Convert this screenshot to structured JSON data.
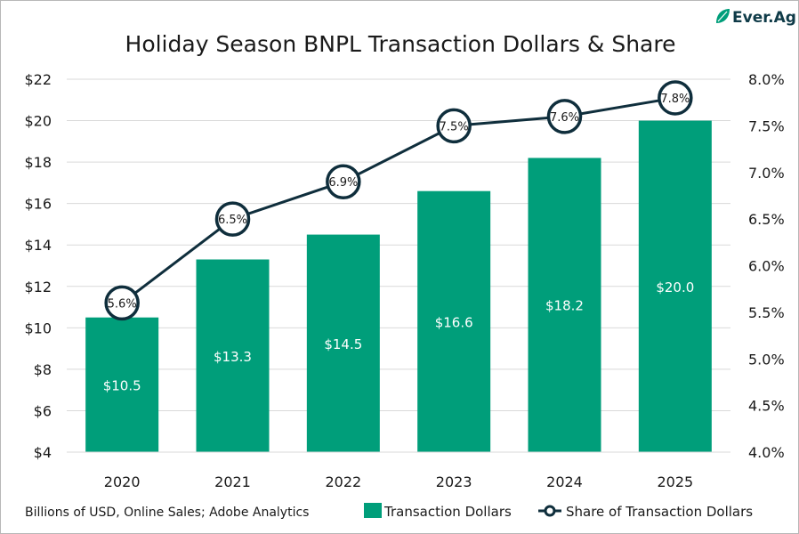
{
  "brand": {
    "logo_text": "Ever.Ag",
    "accent": "#009e7a",
    "dark": "#0f2e3c"
  },
  "source_note": "Billions of USD, Online Sales; Adobe Analytics",
  "chart_data": {
    "type": "bar",
    "title": "Holiday Season BNPL Transaction Dollars & Share",
    "categories": [
      "2020",
      "2021",
      "2022",
      "2023",
      "2024",
      "2025"
    ],
    "series": [
      {
        "name": "Transaction Dollars",
        "type": "bar",
        "axis": "left",
        "values": [
          10.5,
          13.3,
          14.5,
          16.6,
          18.2,
          20.0
        ],
        "labels": [
          "$10.5",
          "$13.3",
          "$14.5",
          "$16.6",
          "$18.2",
          "$20.0"
        ],
        "color": "#009e7a"
      },
      {
        "name": "Share of Transaction Dollars",
        "type": "line",
        "axis": "right",
        "values": [
          5.6,
          6.5,
          6.9,
          7.5,
          7.6,
          7.8
        ],
        "labels": [
          "5.6%",
          "6.5%",
          "6.9%",
          "7.5%",
          "7.6%",
          "7.8%"
        ],
        "color": "#0f2e3c"
      }
    ],
    "y_left": {
      "ylim": [
        4,
        22
      ],
      "ticks": [
        4,
        6,
        8,
        10,
        12,
        14,
        16,
        18,
        20,
        22
      ],
      "tick_labels": [
        "$4",
        "$6",
        "$8",
        "$10",
        "$12",
        "$14",
        "$16",
        "$18",
        "$20",
        "$22"
      ]
    },
    "y_right": {
      "ylim": [
        4.0,
        8.0
      ],
      "ticks": [
        4.0,
        4.5,
        5.0,
        5.5,
        6.0,
        6.5,
        7.0,
        7.5,
        8.0
      ],
      "tick_labels": [
        "4.0%",
        "4.5%",
        "5.0%",
        "5.5%",
        "6.0%",
        "6.5%",
        "7.0%",
        "7.5%",
        "8.0%"
      ]
    },
    "grid": true,
    "legend": "bottom-right"
  }
}
